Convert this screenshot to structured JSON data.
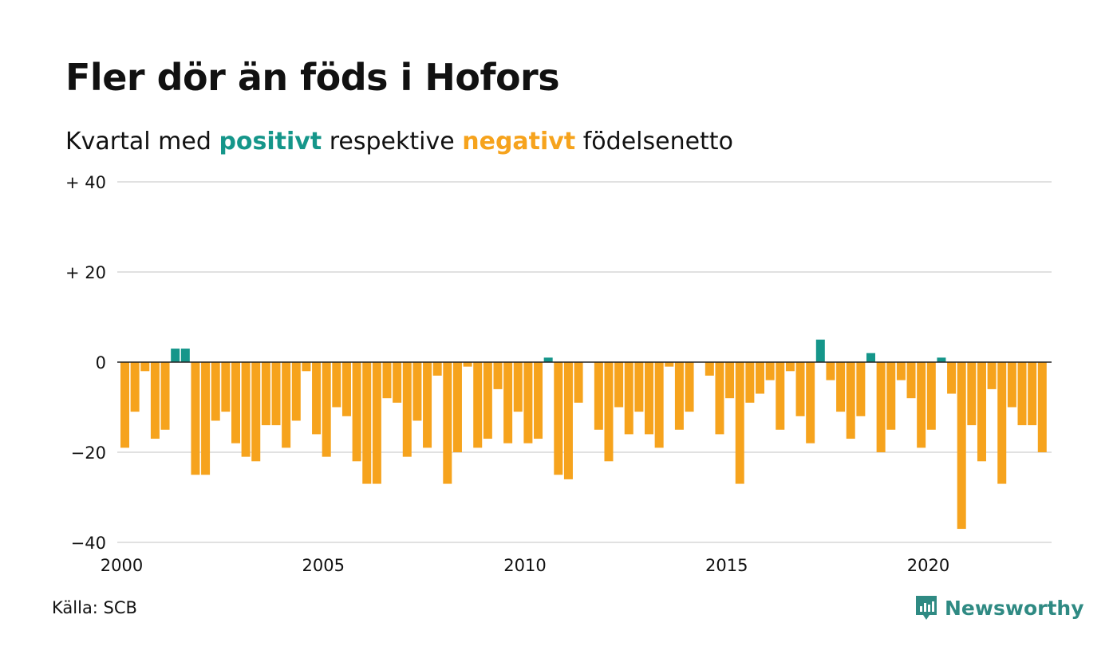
{
  "title": "Fler dör än föds i Hofors",
  "subtitle": {
    "prefix": "Kvartal med",
    "positive_word": "positivt",
    "middle": "respektive",
    "negative_word": "negativt",
    "suffix": "födelsenetto"
  },
  "source": "Källa: SCB",
  "brand": {
    "name": "Newsworthy",
    "icon": "newsworthy-logo-icon"
  },
  "colors": {
    "positive": "#15968a",
    "negative": "#f6a31d",
    "grid": "#e1e1e1",
    "zero_line": "#222222"
  },
  "chart_data": {
    "type": "bar",
    "x_unit": "quarter",
    "x_start": "2000 Q1",
    "x_end": "2022 Q4",
    "x_tick_labels": [
      "2000",
      "2005",
      "2010",
      "2015",
      "2020"
    ],
    "y_tick_labels": [
      "+ 40",
      "+ 20",
      "0",
      "−20",
      "−40"
    ],
    "y_ticks": [
      40,
      20,
      0,
      -20,
      -40
    ],
    "ylim": [
      -40,
      40
    ],
    "grid": true,
    "legend": "none",
    "values": [
      -19,
      -11,
      -2,
      -17,
      -15,
      3,
      3,
      -25,
      -25,
      -13,
      -11,
      -18,
      -21,
      -22,
      -14,
      -14,
      -19,
      -13,
      -2,
      -16,
      -21,
      -10,
      -12,
      -22,
      -27,
      -27,
      -8,
      -9,
      -21,
      -13,
      -19,
      -3,
      -27,
      -20,
      -1,
      -19,
      -17,
      -6,
      -18,
      -11,
      -18,
      -17,
      1,
      -25,
      -26,
      -9,
      0,
      -15,
      -22,
      -10,
      -16,
      -11,
      -16,
      -19,
      -1,
      -15,
      -11,
      0,
      -3,
      -16,
      -8,
      -27,
      -9,
      -7,
      -4,
      -15,
      -2,
      -12,
      -18,
      5,
      -4,
      -11,
      -17,
      -12,
      2,
      -20,
      -15,
      -4,
      -8,
      -19,
      -15,
      1,
      -7,
      -37,
      -14,
      -22,
      -6,
      -27,
      -10,
      -14,
      -14,
      -20
    ]
  }
}
